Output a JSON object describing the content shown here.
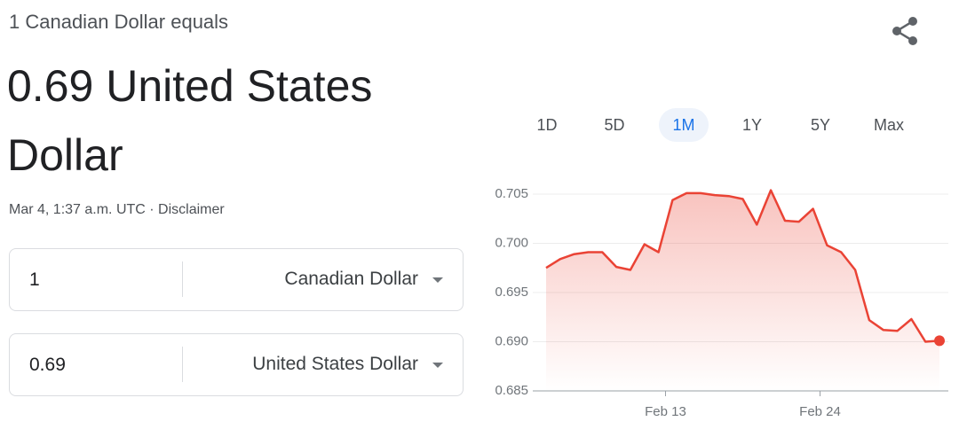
{
  "header": {
    "subtitle": "1 Canadian Dollar equals",
    "result": "0.69 United States Dollar",
    "timestamp": "Mar 4, 1:37 a.m. UTC ·",
    "disclaimer": "Disclaimer"
  },
  "converter": {
    "rows": [
      {
        "amount": "1",
        "currency": "Canadian Dollar"
      },
      {
        "amount": "0.69",
        "currency": "United States Dollar"
      }
    ]
  },
  "range_tabs": {
    "options": [
      "1D",
      "5D",
      "1M",
      "1Y",
      "5Y",
      "Max"
    ],
    "selected_index": 2
  },
  "chart_data": {
    "type": "line",
    "categories": [
      null,
      null,
      null,
      null,
      null,
      null,
      null,
      null,
      "Feb 13",
      null,
      null,
      null,
      null,
      null,
      null,
      null,
      null,
      null,
      null,
      "Feb 24",
      null,
      null,
      null,
      null,
      null,
      null,
      null,
      null,
      null
    ],
    "values": [
      0.6975,
      0.6984,
      0.6989,
      0.6991,
      0.6991,
      0.6976,
      0.6973,
      0.6999,
      0.6991,
      0.7044,
      0.7051,
      0.7051,
      0.7049,
      0.7048,
      0.7045,
      0.7019,
      0.7054,
      0.7023,
      0.7022,
      0.7035,
      0.6998,
      0.6991,
      0.6973,
      0.6922,
      0.6912,
      0.6911,
      0.6923,
      0.69,
      0.6901
    ],
    "color": "#ea4335",
    "ylim": [
      0.685,
      0.705
    ],
    "yticks": [
      0.685,
      {
        "value": 0.69,
        "label": "0.690"
      },
      0.695,
      {
        "value": 0.7,
        "label": "0.700"
      },
      0.705
    ],
    "grid": true
  }
}
